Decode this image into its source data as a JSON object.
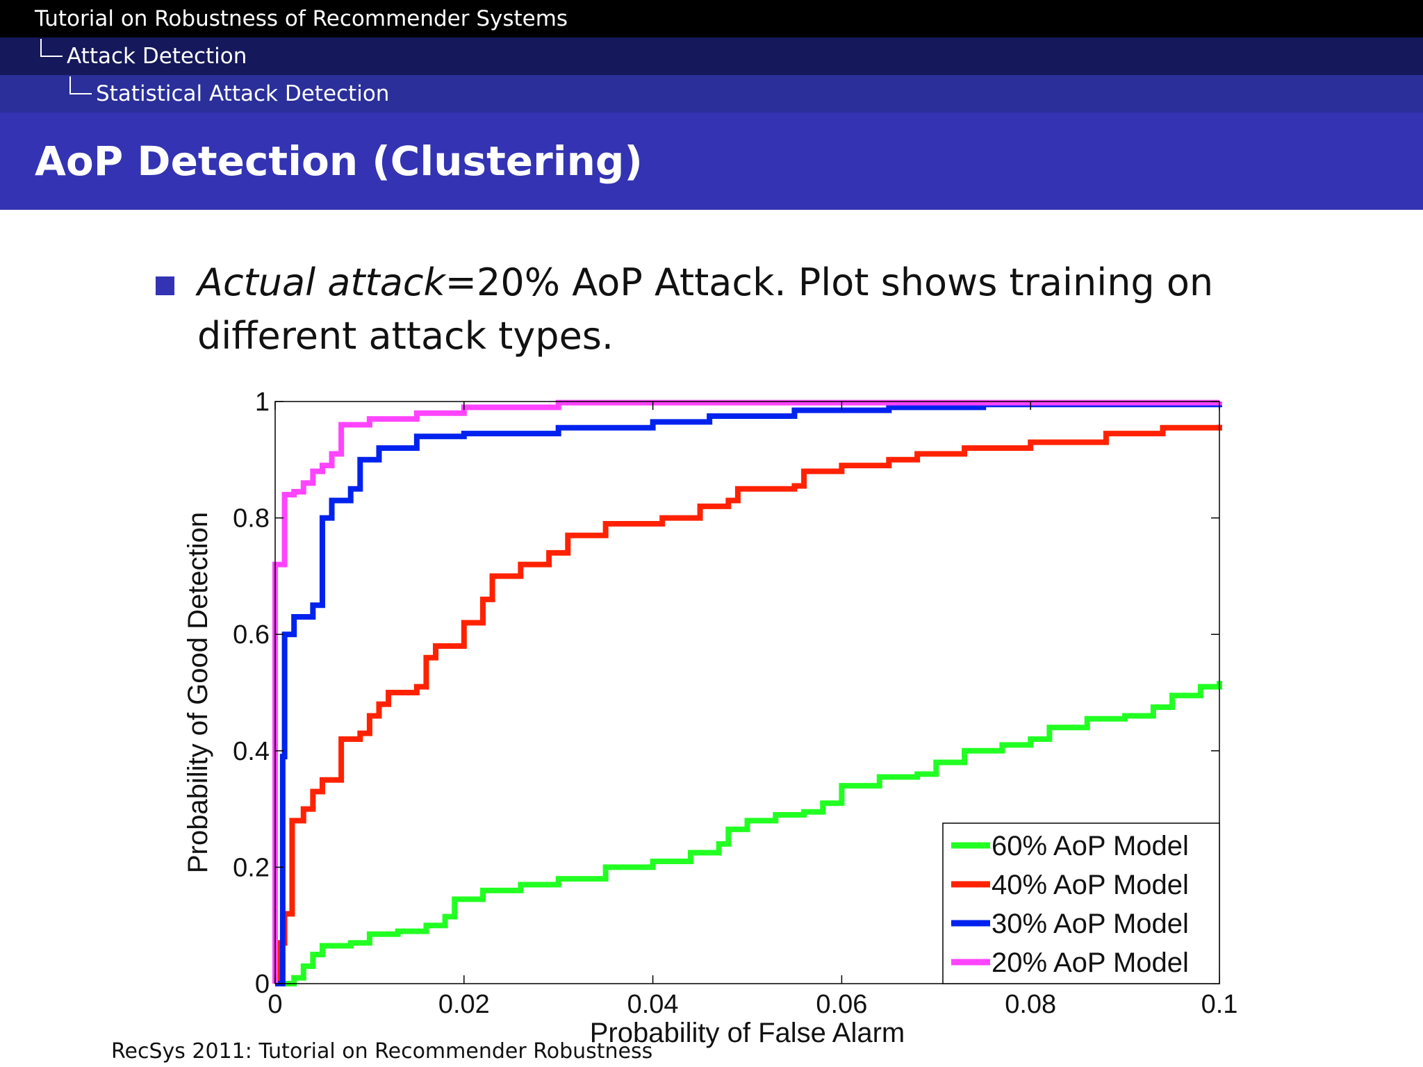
{
  "header": {
    "section": "Tutorial on Robustness of Recommender Systems",
    "subsection": "Attack Detection",
    "subsubsection": "Statistical Attack Detection"
  },
  "slide": {
    "title": "AoP Detection (Clustering)",
    "bullet": {
      "italic": "Actual attack",
      "text": "=20% AoP Attack. Plot shows training on different attack types."
    }
  },
  "footer": "RecSys 2011: Tutorial on Recommender Robustness",
  "chart_data": {
    "type": "line",
    "title": "",
    "xlabel": "Probability of False Alarm",
    "ylabel": "Probability of Good Detection",
    "xlim": [
      0,
      0.1
    ],
    "ylim": [
      0,
      1
    ],
    "xticks": [
      0,
      0.02,
      0.04,
      0.06,
      0.08,
      0.1
    ],
    "xtick_labels": [
      "0",
      "0.02",
      "0.04",
      "0.06",
      "0.08",
      "0.1"
    ],
    "yticks": [
      0,
      0.2,
      0.4,
      0.6,
      0.8,
      1
    ],
    "ytick_labels": [
      "0",
      "0.2",
      "0.4",
      "0.6",
      "0.8",
      "1"
    ],
    "grid": false,
    "legend": "bottom-right",
    "series": [
      {
        "name": "60% AoP Model",
        "color": "#22ff22",
        "points": [
          [
            0,
            0
          ],
          [
            0.002,
            0.01
          ],
          [
            0.003,
            0.03
          ],
          [
            0.004,
            0.05
          ],
          [
            0.005,
            0.065
          ],
          [
            0.008,
            0.07
          ],
          [
            0.01,
            0.085
          ],
          [
            0.013,
            0.09
          ],
          [
            0.016,
            0.1
          ],
          [
            0.018,
            0.115
          ],
          [
            0.019,
            0.145
          ],
          [
            0.022,
            0.16
          ],
          [
            0.026,
            0.17
          ],
          [
            0.03,
            0.18
          ],
          [
            0.035,
            0.2
          ],
          [
            0.04,
            0.21
          ],
          [
            0.044,
            0.225
          ],
          [
            0.047,
            0.24
          ],
          [
            0.048,
            0.265
          ],
          [
            0.05,
            0.28
          ],
          [
            0.053,
            0.29
          ],
          [
            0.056,
            0.295
          ],
          [
            0.058,
            0.31
          ],
          [
            0.06,
            0.34
          ],
          [
            0.064,
            0.355
          ],
          [
            0.068,
            0.36
          ],
          [
            0.07,
            0.38
          ],
          [
            0.073,
            0.4
          ],
          [
            0.077,
            0.41
          ],
          [
            0.08,
            0.42
          ],
          [
            0.082,
            0.44
          ],
          [
            0.086,
            0.455
          ],
          [
            0.09,
            0.46
          ],
          [
            0.093,
            0.475
          ],
          [
            0.095,
            0.495
          ],
          [
            0.098,
            0.51
          ],
          [
            0.1,
            0.52
          ]
        ]
      },
      {
        "name": "40% AoP Model",
        "color": "#ff2200",
        "points": [
          [
            0,
            0
          ],
          [
            0.0005,
            0.07
          ],
          [
            0.001,
            0.12
          ],
          [
            0.0018,
            0.28
          ],
          [
            0.003,
            0.3
          ],
          [
            0.004,
            0.33
          ],
          [
            0.005,
            0.35
          ],
          [
            0.007,
            0.36
          ],
          [
            0.007,
            0.42
          ],
          [
            0.009,
            0.43
          ],
          [
            0.01,
            0.46
          ],
          [
            0.011,
            0.48
          ],
          [
            0.012,
            0.5
          ],
          [
            0.015,
            0.51
          ],
          [
            0.016,
            0.56
          ],
          [
            0.017,
            0.58
          ],
          [
            0.02,
            0.62
          ],
          [
            0.022,
            0.66
          ],
          [
            0.023,
            0.7
          ],
          [
            0.026,
            0.72
          ],
          [
            0.029,
            0.74
          ],
          [
            0.031,
            0.77
          ],
          [
            0.035,
            0.79
          ],
          [
            0.041,
            0.8
          ],
          [
            0.045,
            0.82
          ],
          [
            0.048,
            0.83
          ],
          [
            0.049,
            0.85
          ],
          [
            0.055,
            0.855
          ],
          [
            0.056,
            0.88
          ],
          [
            0.06,
            0.89
          ],
          [
            0.065,
            0.9
          ],
          [
            0.068,
            0.91
          ],
          [
            0.073,
            0.92
          ],
          [
            0.08,
            0.93
          ],
          [
            0.088,
            0.945
          ],
          [
            0.094,
            0.955
          ],
          [
            0.1,
            0.96
          ]
        ]
      },
      {
        "name": "30% AoP Model",
        "color": "#0022ee",
        "points": [
          [
            0,
            0
          ],
          [
            0.0008,
            0.39
          ],
          [
            0.001,
            0.6
          ],
          [
            0.002,
            0.63
          ],
          [
            0.004,
            0.65
          ],
          [
            0.005,
            0.8
          ],
          [
            0.006,
            0.83
          ],
          [
            0.008,
            0.85
          ],
          [
            0.009,
            0.9
          ],
          [
            0.011,
            0.92
          ],
          [
            0.015,
            0.94
          ],
          [
            0.02,
            0.945
          ],
          [
            0.03,
            0.955
          ],
          [
            0.04,
            0.965
          ],
          [
            0.046,
            0.975
          ],
          [
            0.055,
            0.985
          ],
          [
            0.065,
            0.99
          ],
          [
            0.075,
            0.995
          ],
          [
            0.1,
            1
          ]
        ]
      },
      {
        "name": "20% AoP Model",
        "color": "#ff44ff",
        "points": [
          [
            0,
            0
          ],
          [
            0,
            0.72
          ],
          [
            0.0009,
            0.72
          ],
          [
            0.001,
            0.84
          ],
          [
            0.002,
            0.845
          ],
          [
            0.003,
            0.86
          ],
          [
            0.004,
            0.88
          ],
          [
            0.005,
            0.89
          ],
          [
            0.006,
            0.91
          ],
          [
            0.007,
            0.91
          ],
          [
            0.007,
            0.96
          ],
          [
            0.01,
            0.97
          ],
          [
            0.015,
            0.98
          ],
          [
            0.02,
            0.99
          ],
          [
            0.03,
            0.998
          ],
          [
            0.1,
            1
          ]
        ]
      }
    ]
  }
}
